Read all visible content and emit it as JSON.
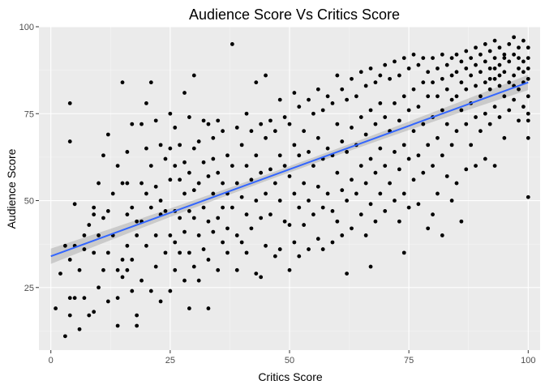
{
  "chart_data": {
    "type": "scatter",
    "title": "Audience Score Vs Critics Score",
    "xlabel": "Critics Score",
    "ylabel": "Audience Score",
    "xlim": [
      -2.5,
      102.5
    ],
    "ylim": [
      7,
      100
    ],
    "x_ticks": [
      0,
      25,
      50,
      75,
      100
    ],
    "y_ticks": [
      25,
      50,
      75,
      100
    ],
    "x_tick_labels": [
      "0",
      "25",
      "50",
      "75",
      "100"
    ],
    "y_tick_labels": [
      "25",
      "50",
      "75",
      "100"
    ],
    "grid": true,
    "legend": "none",
    "colors": {
      "panel_background": "#ebebeb",
      "grid_major": "#ffffff",
      "points": "#000000",
      "trend_line": "#3366ff",
      "confidence_band": "#999999"
    },
    "trend_line": {
      "method": "linear",
      "x": [
        0,
        100
      ],
      "y": [
        34,
        84
      ],
      "confidence_halfwidth": {
        "x": [
          0,
          50,
          100
        ],
        "width": [
          2.2,
          0.9,
          2.2
        ]
      }
    },
    "points": [
      [
        1,
        19
      ],
      [
        2,
        29
      ],
      [
        3,
        11
      ],
      [
        3,
        37
      ],
      [
        4,
        17
      ],
      [
        4,
        22
      ],
      [
        4,
        33
      ],
      [
        4,
        67
      ],
      [
        4,
        78
      ],
      [
        5,
        37
      ],
      [
        5,
        49
      ],
      [
        5,
        22
      ],
      [
        6,
        13
      ],
      [
        6,
        30
      ],
      [
        7,
        40
      ],
      [
        7,
        36
      ],
      [
        7,
        22
      ],
      [
        8,
        43
      ],
      [
        8,
        17
      ],
      [
        9,
        48
      ],
      [
        9,
        35
      ],
      [
        9,
        18
      ],
      [
        9,
        46
      ],
      [
        10,
        40
      ],
      [
        10,
        55
      ],
      [
        10,
        25
      ],
      [
        11,
        63
      ],
      [
        11,
        30
      ],
      [
        11,
        45
      ],
      [
        12,
        69
      ],
      [
        12,
        47
      ],
      [
        12,
        35
      ],
      [
        12,
        21
      ],
      [
        13,
        52
      ],
      [
        13,
        40
      ],
      [
        14,
        60
      ],
      [
        14,
        30
      ],
      [
        14,
        22
      ],
      [
        14,
        14
      ],
      [
        15,
        84
      ],
      [
        15,
        55
      ],
      [
        15,
        33
      ],
      [
        15,
        28
      ],
      [
        16,
        64
      ],
      [
        16,
        55
      ],
      [
        16,
        46
      ],
      [
        16,
        37
      ],
      [
        16,
        30
      ],
      [
        17,
        72
      ],
      [
        17,
        48
      ],
      [
        17,
        33
      ],
      [
        17,
        24
      ],
      [
        18,
        44
      ],
      [
        18,
        40
      ],
      [
        18,
        17
      ],
      [
        18,
        14
      ],
      [
        19,
        72
      ],
      [
        19,
        55
      ],
      [
        19,
        44
      ],
      [
        19,
        27
      ],
      [
        20,
        78
      ],
      [
        20,
        65
      ],
      [
        20,
        52
      ],
      [
        20,
        37
      ],
      [
        21,
        84
      ],
      [
        21,
        60
      ],
      [
        21,
        48
      ],
      [
        21,
        24
      ],
      [
        22,
        73
      ],
      [
        22,
        54
      ],
      [
        22,
        40
      ],
      [
        22,
        31
      ],
      [
        23,
        66
      ],
      [
        23,
        50
      ],
      [
        23,
        46
      ],
      [
        23,
        21
      ],
      [
        24,
        62
      ],
      [
        24,
        47
      ],
      [
        24,
        35
      ],
      [
        25,
        75
      ],
      [
        25,
        65
      ],
      [
        25,
        56
      ],
      [
        25,
        40
      ],
      [
        25,
        24
      ],
      [
        26,
        71
      ],
      [
        26,
        60
      ],
      [
        26,
        47
      ],
      [
        26,
        38
      ],
      [
        26,
        30
      ],
      [
        27,
        66
      ],
      [
        27,
        56
      ],
      [
        27,
        45
      ],
      [
        27,
        35
      ],
      [
        28,
        81
      ],
      [
        28,
        61
      ],
      [
        28,
        52
      ],
      [
        28,
        41
      ],
      [
        28,
        27
      ],
      [
        29,
        74
      ],
      [
        29,
        58
      ],
      [
        29,
        47
      ],
      [
        29,
        35
      ],
      [
        29,
        19
      ],
      [
        30,
        86
      ],
      [
        30,
        65
      ],
      [
        30,
        53
      ],
      [
        30,
        45
      ],
      [
        30,
        31
      ],
      [
        31,
        67
      ],
      [
        31,
        55
      ],
      [
        31,
        40
      ],
      [
        31,
        27
      ],
      [
        32,
        73
      ],
      [
        32,
        61
      ],
      [
        32,
        48
      ],
      [
        32,
        36
      ],
      [
        33,
        72
      ],
      [
        33,
        57
      ],
      [
        33,
        44
      ],
      [
        33,
        33
      ],
      [
        33,
        19
      ],
      [
        34,
        68
      ],
      [
        34,
        62
      ],
      [
        34,
        52
      ],
      [
        34,
        41
      ],
      [
        35,
        73
      ],
      [
        35,
        58
      ],
      [
        35,
        45
      ],
      [
        35,
        30
      ],
      [
        36,
        70
      ],
      [
        36,
        55
      ],
      [
        36,
        48
      ],
      [
        36,
        38
      ],
      [
        37,
        63
      ],
      [
        37,
        52
      ],
      [
        37,
        42
      ],
      [
        37,
        35
      ],
      [
        38,
        95
      ],
      [
        38,
        60
      ],
      [
        38,
        48
      ],
      [
        39,
        71
      ],
      [
        39,
        55
      ],
      [
        39,
        40
      ],
      [
        39,
        30
      ],
      [
        40,
        66
      ],
      [
        40,
        51
      ],
      [
        40,
        38
      ],
      [
        41,
        75
      ],
      [
        41,
        60
      ],
      [
        41,
        46
      ],
      [
        41,
        35
      ],
      [
        42,
        70
      ],
      [
        42,
        56
      ],
      [
        42,
        42
      ],
      [
        43,
        84
      ],
      [
        43,
        63
      ],
      [
        43,
        50
      ],
      [
        43,
        29
      ],
      [
        44,
        72
      ],
      [
        44,
        58
      ],
      [
        44,
        45
      ],
      [
        44,
        28
      ],
      [
        45,
        86
      ],
      [
        45,
        68
      ],
      [
        45,
        52
      ],
      [
        45,
        37
      ],
      [
        46,
        73
      ],
      [
        46,
        59
      ],
      [
        46,
        46
      ],
      [
        47,
        70
      ],
      [
        47,
        55
      ],
      [
        47,
        34
      ],
      [
        48,
        79
      ],
      [
        48,
        63
      ],
      [
        48,
        50
      ],
      [
        48,
        36
      ],
      [
        49,
        74
      ],
      [
        49,
        60
      ],
      [
        49,
        44
      ],
      [
        50,
        72
      ],
      [
        50,
        57
      ],
      [
        50,
        43
      ],
      [
        50,
        30
      ],
      [
        51,
        81
      ],
      [
        51,
        66
      ],
      [
        51,
        52
      ],
      [
        51,
        38
      ],
      [
        52,
        77
      ],
      [
        52,
        63
      ],
      [
        52,
        48
      ],
      [
        52,
        34
      ],
      [
        53,
        70
      ],
      [
        53,
        55
      ],
      [
        53,
        43
      ],
      [
        54,
        79
      ],
      [
        54,
        64
      ],
      [
        54,
        50
      ],
      [
        54,
        36
      ],
      [
        55,
        75
      ],
      [
        55,
        60
      ],
      [
        55,
        46
      ],
      [
        56,
        82
      ],
      [
        56,
        68
      ],
      [
        56,
        54
      ],
      [
        56,
        39
      ],
      [
        57,
        76
      ],
      [
        57,
        62
      ],
      [
        57,
        48
      ],
      [
        57,
        36
      ],
      [
        58,
        80
      ],
      [
        58,
        65
      ],
      [
        58,
        52
      ],
      [
        59,
        78
      ],
      [
        59,
        63
      ],
      [
        59,
        47
      ],
      [
        59,
        38
      ],
      [
        60,
        86
      ],
      [
        60,
        72
      ],
      [
        60,
        58
      ],
      [
        60,
        44
      ],
      [
        61,
        82
      ],
      [
        61,
        67
      ],
      [
        61,
        53
      ],
      [
        61,
        40
      ],
      [
        62,
        79
      ],
      [
        62,
        64
      ],
      [
        62,
        50
      ],
      [
        62,
        29
      ],
      [
        63,
        85
      ],
      [
        63,
        71
      ],
      [
        63,
        56
      ],
      [
        63,
        42
      ],
      [
        64,
        80
      ],
      [
        64,
        66
      ],
      [
        64,
        52
      ],
      [
        65,
        87
      ],
      [
        65,
        74
      ],
      [
        65,
        60
      ],
      [
        65,
        46
      ],
      [
        66,
        83
      ],
      [
        66,
        69
      ],
      [
        66,
        55
      ],
      [
        66,
        40
      ],
      [
        67,
        88
      ],
      [
        67,
        76
      ],
      [
        67,
        62
      ],
      [
        67,
        49
      ],
      [
        67,
        31
      ],
      [
        68,
        84
      ],
      [
        68,
        72
      ],
      [
        68,
        58
      ],
      [
        68,
        44
      ],
      [
        69,
        86
      ],
      [
        69,
        78
      ],
      [
        69,
        65
      ],
      [
        69,
        52
      ],
      [
        70,
        89
      ],
      [
        70,
        74
      ],
      [
        70,
        60
      ],
      [
        70,
        47
      ],
      [
        71,
        85
      ],
      [
        71,
        70
      ],
      [
        71,
        55
      ],
      [
        72,
        90
      ],
      [
        72,
        78
      ],
      [
        72,
        64
      ],
      [
        72,
        50
      ],
      [
        73,
        86
      ],
      [
        73,
        73
      ],
      [
        73,
        59
      ],
      [
        73,
        44
      ],
      [
        74,
        91
      ],
      [
        74,
        80
      ],
      [
        74,
        66
      ],
      [
        74,
        52
      ],
      [
        74,
        35
      ],
      [
        75,
        88
      ],
      [
        75,
        76
      ],
      [
        75,
        62
      ],
      [
        75,
        48
      ],
      [
        76,
        92
      ],
      [
        76,
        82
      ],
      [
        76,
        70
      ],
      [
        76,
        56
      ],
      [
        77,
        89
      ],
      [
        77,
        77
      ],
      [
        77,
        63
      ],
      [
        77,
        49
      ],
      [
        78,
        91
      ],
      [
        78,
        84
      ],
      [
        78,
        72
      ],
      [
        78,
        58
      ],
      [
        79,
        87
      ],
      [
        79,
        80
      ],
      [
        79,
        66
      ],
      [
        79,
        42
      ],
      [
        80,
        91
      ],
      [
        80,
        84
      ],
      [
        80,
        74
      ],
      [
        80,
        60
      ],
      [
        80,
        46
      ],
      [
        81,
        88
      ],
      [
        81,
        80
      ],
      [
        81,
        68
      ],
      [
        81,
        52
      ],
      [
        82,
        92
      ],
      [
        82,
        85
      ],
      [
        82,
        76
      ],
      [
        82,
        63
      ],
      [
        82,
        40
      ],
      [
        83,
        89
      ],
      [
        83,
        82
      ],
      [
        83,
        72
      ],
      [
        83,
        57
      ],
      [
        84,
        91
      ],
      [
        84,
        86
      ],
      [
        84,
        79
      ],
      [
        84,
        66
      ],
      [
        84,
        50
      ],
      [
        85,
        92
      ],
      [
        85,
        87
      ],
      [
        85,
        80
      ],
      [
        85,
        70
      ],
      [
        85,
        55
      ],
      [
        86,
        90
      ],
      [
        86,
        84
      ],
      [
        86,
        76
      ],
      [
        86,
        44
      ],
      [
        87,
        93
      ],
      [
        87,
        88
      ],
      [
        87,
        82
      ],
      [
        87,
        72
      ],
      [
        87,
        59
      ],
      [
        88,
        91
      ],
      [
        88,
        86
      ],
      [
        88,
        78
      ],
      [
        88,
        66
      ],
      [
        89,
        94
      ],
      [
        89,
        89
      ],
      [
        89,
        83
      ],
      [
        89,
        74
      ],
      [
        89,
        60
      ],
      [
        90,
        92
      ],
      [
        90,
        87
      ],
      [
        90,
        80
      ],
      [
        90,
        70
      ],
      [
        91,
        95
      ],
      [
        91,
        90
      ],
      [
        91,
        84
      ],
      [
        91,
        75
      ],
      [
        91,
        62
      ],
      [
        92,
        93
      ],
      [
        92,
        88
      ],
      [
        92,
        82
      ],
      [
        92,
        72
      ],
      [
        93,
        96
      ],
      [
        93,
        91
      ],
      [
        93,
        85
      ],
      [
        93,
        77
      ],
      [
        93,
        60
      ],
      [
        94,
        94
      ],
      [
        94,
        89
      ],
      [
        94,
        83
      ],
      [
        94,
        74
      ],
      [
        95,
        92
      ],
      [
        95,
        87
      ],
      [
        95,
        80
      ],
      [
        95,
        68
      ],
      [
        96,
        95
      ],
      [
        96,
        90
      ],
      [
        96,
        84
      ],
      [
        96,
        76
      ],
      [
        97,
        97
      ],
      [
        97,
        92
      ],
      [
        97,
        86
      ],
      [
        97,
        79
      ],
      [
        98,
        94
      ],
      [
        98,
        88
      ],
      [
        98,
        82
      ],
      [
        98,
        73
      ],
      [
        99,
        96
      ],
      [
        99,
        90
      ],
      [
        99,
        84
      ],
      [
        99,
        77
      ],
      [
        100,
        94
      ],
      [
        100,
        91
      ],
      [
        100,
        85
      ],
      [
        100,
        80
      ],
      [
        100,
        73
      ],
      [
        100,
        68
      ],
      [
        100,
        51
      ],
      [
        100,
        88
      ],
      [
        100,
        75
      ],
      [
        99,
        87
      ],
      [
        98,
        91
      ],
      [
        97,
        83
      ],
      [
        95,
        91
      ],
      [
        94,
        86
      ],
      [
        93,
        88
      ],
      [
        92,
        85
      ]
    ]
  }
}
